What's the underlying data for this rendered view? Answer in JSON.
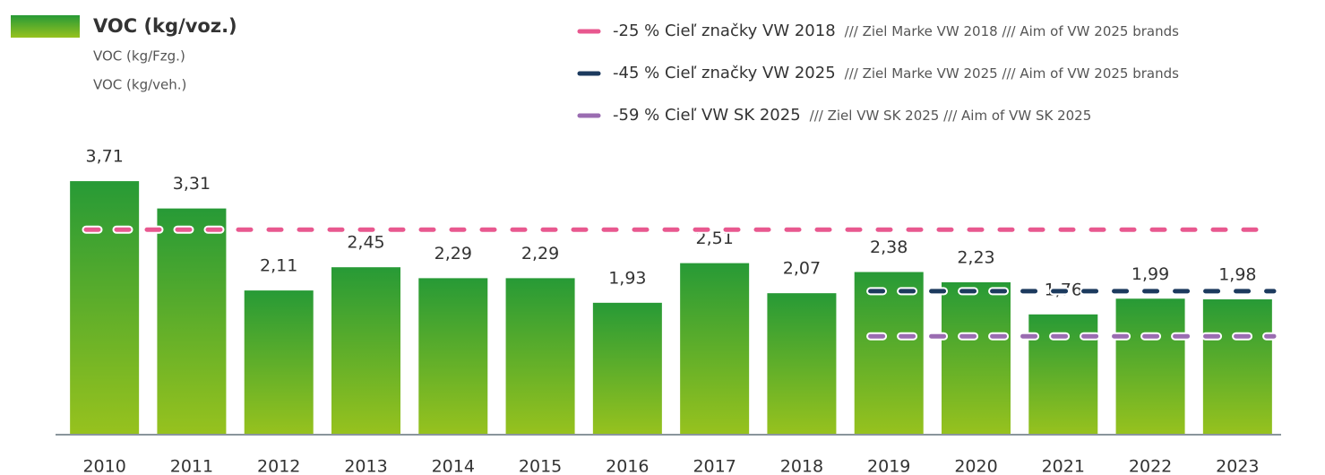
{
  "chart_data": {
    "type": "bar",
    "series_title": "VOC (kg/voz.)",
    "series_subtitles": [
      "VOC (kg/Fzg.)",
      "VOC (kg/veh.)"
    ],
    "categories": [
      "2010",
      "2011",
      "2012",
      "2013",
      "2014",
      "2015",
      "2016",
      "2017",
      "2018",
      "2019",
      "2020",
      "2021",
      "2022",
      "2023"
    ],
    "values": [
      3.71,
      3.31,
      2.11,
      2.45,
      2.29,
      2.29,
      1.93,
      2.51,
      2.07,
      2.38,
      2.23,
      1.76,
      1.99,
      1.98
    ],
    "value_labels": [
      "3,71",
      "3,31",
      "2,11",
      "2,45",
      "2,29",
      "2,29",
      "1,93",
      "2,51",
      "2,07",
      "2,38",
      "2,23",
      "1,76",
      "1,99",
      "1,98"
    ],
    "color_top": "#279a36",
    "color_bottom": "#97c21e",
    "ylim": [
      0,
      4
    ],
    "reference_lines": [
      {
        "name": "-25 % Cieľ značky VW 2018",
        "note": "/// Ziel Marke VW 2018 /// Aim of VW 2025 brands",
        "value": 3.0,
        "color": "#e8588f",
        "from_category": "2010"
      },
      {
        "name": "-45 % Cieľ značky VW 2025",
        "note": "/// Ziel Marke VW 2025 /// Aim of VW 2025 brands",
        "value": 2.1,
        "color": "#1c3a5e",
        "from_category": "2019"
      },
      {
        "name": "-59 % Cieľ VW SK 2025",
        "note": "/// Ziel VW SK 2025 /// Aim of VW SK 2025",
        "value": 1.44,
        "color": "#9a6cb1",
        "from_category": "2019"
      }
    ]
  }
}
